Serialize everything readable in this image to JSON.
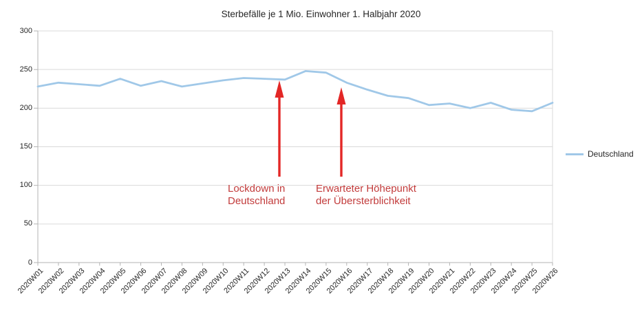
{
  "title": "Sterbefälle je 1 Mio. Einwohner 1. Halbjahr 2020",
  "legend": {
    "series_label": "Deutschland"
  },
  "annotations": {
    "lockdown": {
      "line1": "Lockdown in",
      "line2": "Deutschland"
    },
    "peak": {
      "line1": "Erwarteter Höhepunkt",
      "line2": "der Übersterblichkeit"
    }
  },
  "colors": {
    "line": "#a0c8e8",
    "arrow": "#e32726",
    "annotation_text": "#c23b3b",
    "gridline": "#d9d9d9",
    "axis": "#b3b3b3",
    "label_text": "#262626"
  },
  "chart_data": {
    "type": "line",
    "title": "Sterbefälle je 1 Mio. Einwohner 1. Halbjahr 2020",
    "categories": [
      "2020W01",
      "2020W02",
      "2020W03",
      "2020W04",
      "2020W05",
      "2020W06",
      "2020W07",
      "2020W08",
      "2020W09",
      "2020W10",
      "2020W11",
      "2020W12",
      "2020W13",
      "2020W14",
      "2020W15",
      "2020W16",
      "2020W17",
      "2020W18",
      "2020W19",
      "2020W20",
      "2020W21",
      "2020W22",
      "2020W23",
      "2020W24",
      "2020W25",
      "2020W26"
    ],
    "series": [
      {
        "name": "Deutschland",
        "color": "#a0c8e8",
        "values": [
          228,
          233,
          231,
          229,
          238,
          229,
          235,
          228,
          232,
          236,
          239,
          238,
          237,
          248,
          246,
          233,
          224,
          216,
          213,
          204,
          206,
          200,
          207,
          198,
          196,
          207
        ]
      }
    ],
    "xlabel": "",
    "ylabel": "",
    "ylim": [
      0,
      300
    ],
    "yticks": [
      0,
      50,
      100,
      150,
      200,
      250,
      300
    ],
    "grid": "horizontal",
    "legend_position": "right",
    "annotations": [
      {
        "text": "Lockdown in Deutschland",
        "target_category": "2020W13"
      },
      {
        "text": "Erwarteter Höhepunkt der Übersterblichkeit",
        "target_category": "2020W16"
      }
    ]
  }
}
